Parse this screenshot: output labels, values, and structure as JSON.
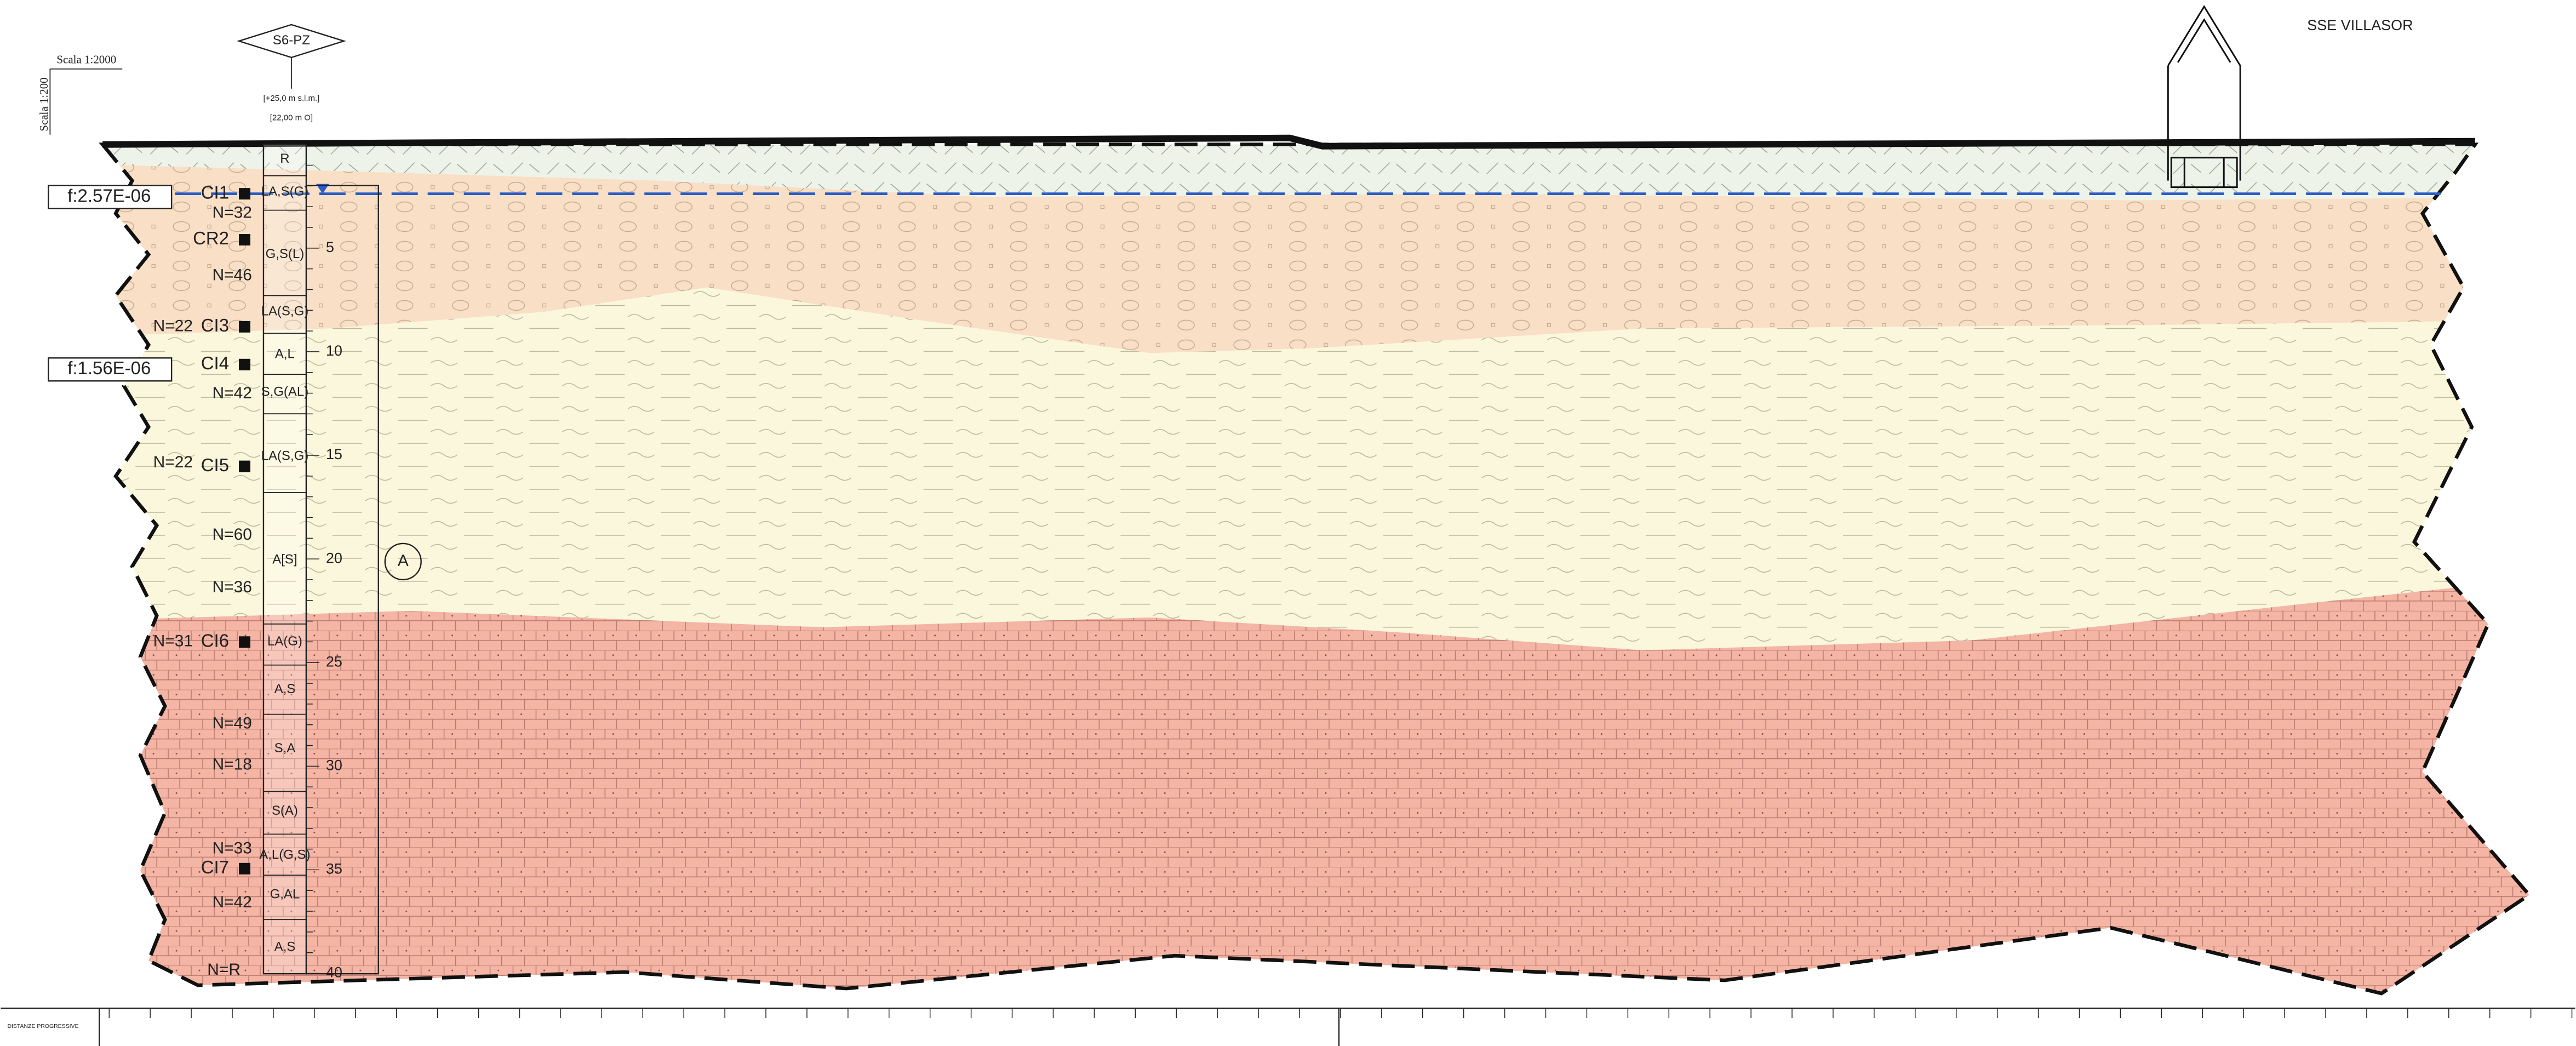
{
  "header": {
    "scale_h": "Scala 1:2000",
    "scale_v": "Scala 1:200",
    "borehole": "S6-PZ",
    "elevation": "[+25,0 m s.l.m.]",
    "depth": "[22,00 m O]",
    "station": "SSE VILLASOR"
  },
  "permeability": [
    "f:2.57E-06",
    "f:1.56E-06"
  ],
  "samples": [
    "CI1",
    "CR2",
    "CI3",
    "CI4",
    "CI5",
    "CI6",
    "CI7"
  ],
  "spt": [
    "N=32",
    "N=46",
    "N=22",
    "N=42",
    "N=22",
    "N=60",
    "N=36",
    "N=31",
    "N=49",
    "N=18",
    "N=33",
    "N=42",
    "N=R"
  ],
  "lithology": [
    "R",
    "LA,S(G)",
    "G,S(L)",
    "LA(S,G)",
    "A,L",
    "S,G(AL)",
    "LA(S,G)",
    "A[S]",
    "LA(G)",
    "A,S",
    "S,A",
    "S(A)",
    "A,L(G,S)",
    "G,AL",
    "A,S"
  ],
  "depth_labels": [
    "5",
    "10",
    "15",
    "20",
    "25",
    "30",
    "35",
    "40"
  ],
  "unit": "A",
  "footer": {
    "label": "DISTANZE PROGRESSIVE"
  }
}
